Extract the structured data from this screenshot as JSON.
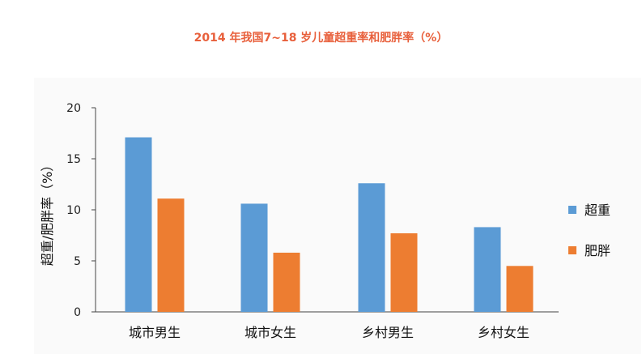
{
  "chart_data": {
    "type": "bar",
    "title": "2014 年我国7~18 岁儿童超重率和肥胖率（%）",
    "ylabel": "超重/肥胖率（%）",
    "xlabel": "",
    "categories": [
      "城市男生",
      "城市女生",
      "乡村男生",
      "乡村女生"
    ],
    "series": [
      {
        "name": "超重",
        "color": "#5b9bd5",
        "values": [
          17.1,
          10.6,
          12.6,
          8.3
        ]
      },
      {
        "name": "肥胖",
        "color": "#ed7d31",
        "values": [
          11.1,
          5.8,
          7.7,
          4.5
        ]
      }
    ],
    "ylim": [
      0,
      20
    ],
    "yticks": [
      0,
      5,
      10,
      15,
      20
    ],
    "grid": false,
    "legend_position": "right"
  }
}
